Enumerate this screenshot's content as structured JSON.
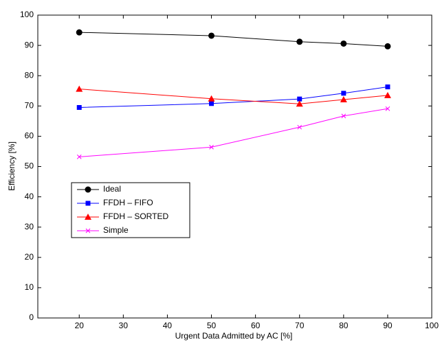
{
  "chart_data": {
    "type": "line",
    "xlabel": "Urgent Data Admitted by AC [%]",
    "ylabel": "Efficiency [%]",
    "x": [
      20,
      50,
      70,
      80,
      90
    ],
    "series": [
      {
        "name": "Ideal",
        "color": "#000000",
        "marker": "circle",
        "values": [
          94.3,
          93.2,
          91.2,
          90.6,
          89.7
        ]
      },
      {
        "name": "FFDH – FIFO",
        "color": "#0000ff",
        "marker": "square",
        "values": [
          69.5,
          70.8,
          72.3,
          74.2,
          76.3
        ]
      },
      {
        "name": "FFDH – SORTED",
        "color": "#ff0000",
        "marker": "triangle",
        "values": [
          75.6,
          72.4,
          70.7,
          72.1,
          73.5
        ]
      },
      {
        "name": "Simple",
        "color": "#ff00ff",
        "marker": "x",
        "values": [
          53.2,
          56.4,
          63.0,
          66.7,
          69.1
        ]
      }
    ],
    "xlim": [
      10.6,
      100
    ],
    "xticks": [
      20,
      30,
      40,
      50,
      60,
      70,
      80,
      90,
      100
    ],
    "ylim": [
      0,
      100
    ],
    "yticks": [
      0,
      10,
      20,
      30,
      40,
      50,
      60,
      70,
      80,
      90,
      100
    ],
    "grid": false,
    "legend": "lower-left"
  }
}
